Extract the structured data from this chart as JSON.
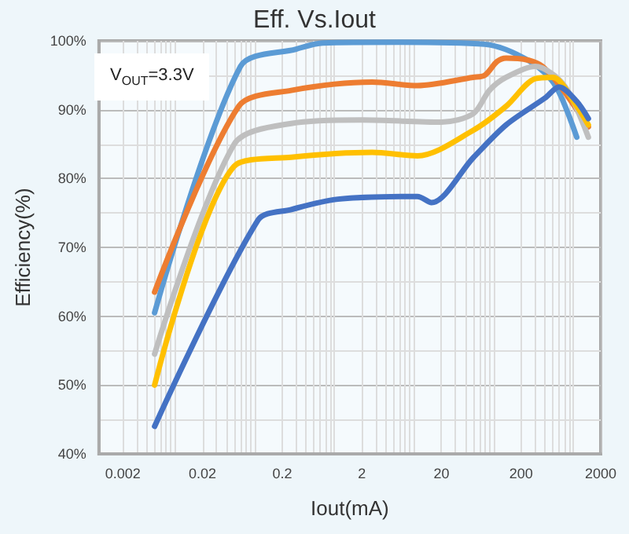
{
  "chart_data": {
    "type": "line",
    "title": "Eff. Vs.Iout",
    "xlabel": "Iout(mA)",
    "ylabel": "Efficiency(%)",
    "annotations": [
      "V$_{OUT}$=3.3V"
    ],
    "log": "x",
    "grid": true,
    "marker": "none",
    "line_style": "solid",
    "xlim": [
      0.001,
      2000
    ],
    "xticks": [
      0.002,
      0.02,
      0.2,
      2,
      20,
      200,
      2000
    ],
    "ylim": [
      40,
      100
    ],
    "yticks": [
      {
        "value": 40,
        "label": "40%"
      },
      {
        "value": 50,
        "label": "50%"
      },
      {
        "value": 60,
        "label": "60%"
      },
      {
        "value": 70,
        "label": "70%"
      },
      {
        "value": 80,
        "label": "80%"
      },
      {
        "value": 90,
        "label": "90%"
      },
      {
        "value": 100,
        "label": "100%"
      }
    ],
    "series": [
      {
        "color": "#5b9bd5",
        "x": [
          0.005,
          0.06,
          0.3,
          0.65,
          6,
          70,
          260,
          540,
          1000
        ],
        "values": [
          60.5,
          96.3,
          98.8,
          99.7,
          99.8,
          99.5,
          97,
          93.5,
          86
        ]
      },
      {
        "color": "#ed7d31",
        "x": [
          0.005,
          0.057,
          0.26,
          2.7,
          10,
          50,
          70,
          100,
          130,
          370,
          1400
        ],
        "values": [
          63.5,
          90.5,
          92.8,
          94,
          93.5,
          94.7,
          95,
          97,
          97.5,
          96.3,
          87.5
        ]
      },
      {
        "color": "#bfbfbf",
        "x": [
          0.005,
          0.05,
          0.26,
          2,
          20,
          50,
          80,
          130,
          300,
          700,
          1400
        ],
        "values": [
          54.5,
          85,
          88,
          88.5,
          88.2,
          89.4,
          92.8,
          94.7,
          96.3,
          93.5,
          86
        ]
      },
      {
        "color": "#ffc000",
        "x": [
          0.005,
          0.05,
          0.26,
          2.7,
          10,
          50,
          130,
          300,
          500,
          1000,
          1400
        ],
        "values": [
          50,
          81.8,
          83.1,
          83.8,
          83.3,
          87,
          90.5,
          94.5,
          94.7,
          90.5,
          87.8
        ]
      },
      {
        "color": "#4472c4",
        "x": [
          0.005,
          0.1,
          0.26,
          1,
          10,
          15,
          50,
          130,
          400,
          600,
          1000,
          1400
        ],
        "values": [
          44,
          74,
          75.5,
          77,
          77.4,
          76.5,
          83,
          87.8,
          91.7,
          93.3,
          91.2,
          88.7
        ]
      }
    ]
  }
}
